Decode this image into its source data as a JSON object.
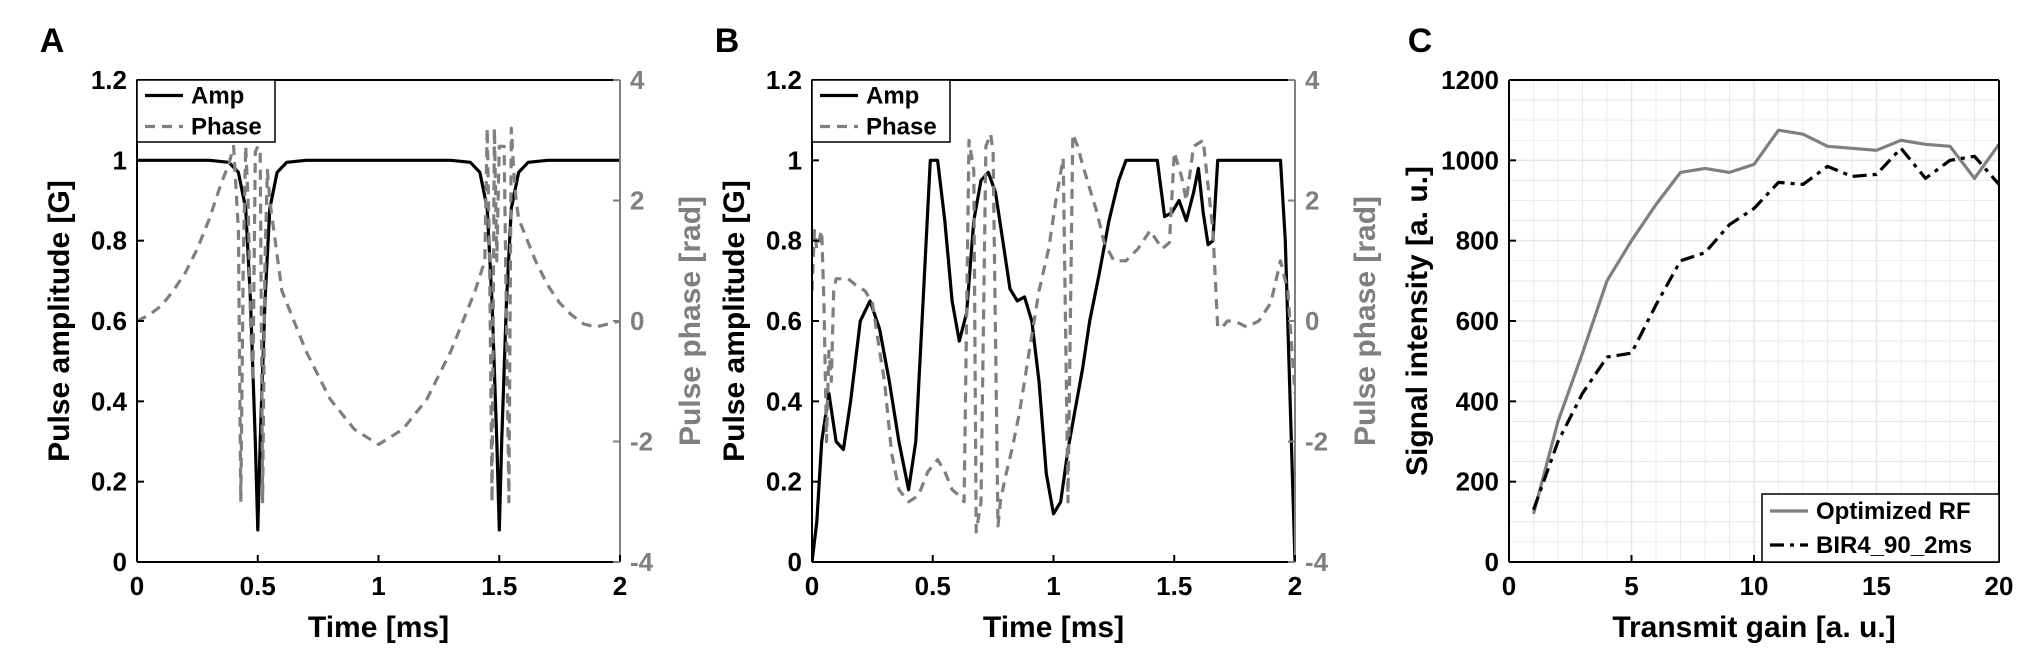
{
  "colors": {
    "black": "#000000",
    "gray": "#7f7f7f",
    "grid": "#e6e6e6"
  },
  "chart_data": [
    {
      "panel": "A",
      "type": "line",
      "xlabel": "Time [ms]",
      "ylabel": "Pulse amplitude [G]",
      "y2label": "Pulse phase [rad]",
      "xlim": [
        0,
        2
      ],
      "ylim": [
        0,
        1.2
      ],
      "y2lim": [
        -4,
        4
      ],
      "xticks": [
        "0",
        "0.5",
        "1",
        "1.5",
        "2"
      ],
      "yticks": [
        "0",
        "0.2",
        "0.4",
        "0.6",
        "0.8",
        "1",
        "1.2"
      ],
      "y2ticks": [
        "-4",
        "-2",
        "0",
        "2",
        "4"
      ],
      "grid": false,
      "legend": "top-left",
      "series": [
        {
          "name": "Amp",
          "axis": "left",
          "style": "solid",
          "x": [
            0,
            0.3,
            0.38,
            0.42,
            0.45,
            0.47,
            0.49,
            0.5,
            0.51,
            0.53,
            0.55,
            0.58,
            0.62,
            0.7,
            1.0,
            1.3,
            1.38,
            1.42,
            1.45,
            1.47,
            1.49,
            1.5,
            1.51,
            1.53,
            1.55,
            1.58,
            1.62,
            1.7,
            2.0
          ],
          "y": [
            1,
            1,
            0.995,
            0.97,
            0.88,
            0.65,
            0.3,
            0.08,
            0.3,
            0.65,
            0.88,
            0.97,
            0.995,
            1,
            1,
            1,
            0.995,
            0.97,
            0.88,
            0.65,
            0.3,
            0.08,
            0.3,
            0.65,
            0.88,
            0.97,
            0.995,
            1,
            1
          ]
        },
        {
          "name": "Phase",
          "axis": "right",
          "style": "dashed",
          "x": [
            0,
            0.05,
            0.1,
            0.15,
            0.2,
            0.25,
            0.3,
            0.35,
            0.38,
            0.4,
            0.42,
            0.43,
            0.44,
            0.45,
            0.46,
            0.47,
            0.48,
            0.49,
            0.5,
            0.51,
            0.52,
            0.53,
            0.54,
            0.55,
            0.6,
            0.7,
            0.8,
            0.9,
            1.0,
            1.1,
            1.2,
            1.3,
            1.4,
            1.44,
            1.45,
            1.46,
            1.47,
            1.48,
            1.49,
            1.5,
            1.52,
            1.54,
            1.55,
            1.56,
            1.57,
            1.58,
            1.6,
            1.65,
            1.7,
            1.75,
            1.8,
            1.85,
            1.9,
            1.95,
            2.0
          ],
          "y": [
            0,
            0.1,
            0.25,
            0.5,
            0.8,
            1.2,
            1.7,
            2.3,
            2.6,
            2.9,
            1.5,
            -3.0,
            1.0,
            2.9,
            2.0,
            0.0,
            -1.0,
            2.8,
            2.9,
            2.8,
            -3.0,
            1.0,
            2.5,
            2.0,
            0.5,
            -0.5,
            -1.3,
            -1.8,
            -2.05,
            -1.8,
            -1.3,
            -0.5,
            0.5,
            1.0,
            3.2,
            1.0,
            -3.0,
            3.2,
            1.0,
            2.9,
            2.9,
            -3.0,
            3.2,
            2.5,
            2.0,
            1.7,
            1.5,
            1.0,
            0.6,
            0.3,
            0.1,
            -0.05,
            -0.1,
            -0.05,
            0
          ]
        }
      ]
    },
    {
      "panel": "B",
      "type": "line",
      "xlabel": "Time [ms]",
      "ylabel": "Pulse amplitude [G]",
      "y2label": "Pulse phase [rad]",
      "xlim": [
        0,
        2
      ],
      "ylim": [
        0,
        1.2
      ],
      "y2lim": [
        -4,
        4
      ],
      "xticks": [
        "0",
        "0.5",
        "1",
        "1.5",
        "2"
      ],
      "yticks": [
        "0",
        "0.2",
        "0.4",
        "0.6",
        "0.8",
        "1",
        "1.2"
      ],
      "y2ticks": [
        "-4",
        "-2",
        "0",
        "2",
        "4"
      ],
      "grid": false,
      "legend": "top-left",
      "series": [
        {
          "name": "Amp",
          "axis": "left",
          "style": "solid",
          "x": [
            0,
            0.02,
            0.04,
            0.07,
            0.1,
            0.13,
            0.16,
            0.2,
            0.24,
            0.28,
            0.32,
            0.36,
            0.4,
            0.43,
            0.46,
            0.49,
            0.52,
            0.55,
            0.58,
            0.61,
            0.64,
            0.67,
            0.7,
            0.73,
            0.76,
            0.79,
            0.82,
            0.85,
            0.88,
            0.91,
            0.94,
            0.97,
            1.0,
            1.03,
            1.06,
            1.09,
            1.12,
            1.15,
            1.19,
            1.23,
            1.27,
            1.3,
            1.35,
            1.4,
            1.43,
            1.46,
            1.49,
            1.52,
            1.55,
            1.58,
            1.6,
            1.62,
            1.64,
            1.66,
            1.68,
            1.7,
            1.75,
            1.8,
            1.85,
            1.9,
            1.94,
            1.96,
            2.0
          ],
          "y": [
            0,
            0.1,
            0.3,
            0.42,
            0.3,
            0.28,
            0.4,
            0.6,
            0.65,
            0.58,
            0.45,
            0.3,
            0.18,
            0.3,
            0.65,
            1.0,
            1.0,
            0.85,
            0.65,
            0.55,
            0.62,
            0.85,
            0.95,
            0.97,
            0.92,
            0.8,
            0.68,
            0.65,
            0.66,
            0.6,
            0.45,
            0.22,
            0.12,
            0.15,
            0.28,
            0.38,
            0.48,
            0.6,
            0.72,
            0.85,
            0.95,
            1.0,
            1.0,
            1.0,
            1.0,
            0.86,
            0.87,
            0.9,
            0.85,
            0.92,
            0.98,
            0.87,
            0.79,
            0.8,
            1.0,
            1.0,
            1.0,
            1.0,
            1.0,
            1.0,
            1.0,
            0.8,
            0
          ]
        },
        {
          "name": "Phase",
          "axis": "right",
          "style": "dashed",
          "x": [
            0,
            0.01,
            0.02,
            0.04,
            0.05,
            0.06,
            0.07,
            0.08,
            0.09,
            0.1,
            0.12,
            0.15,
            0.18,
            0.22,
            0.25,
            0.28,
            0.3,
            0.33,
            0.36,
            0.4,
            0.44,
            0.48,
            0.52,
            0.55,
            0.58,
            0.61,
            0.63,
            0.65,
            0.67,
            0.68,
            0.7,
            0.72,
            0.74,
            0.75,
            0.77,
            0.78,
            0.8,
            0.83,
            0.86,
            0.9,
            0.94,
            0.98,
            1.01,
            1.04,
            1.06,
            1.08,
            1.1,
            1.12,
            1.15,
            1.18,
            1.21,
            1.25,
            1.3,
            1.35,
            1.4,
            1.45,
            1.48,
            1.5,
            1.53,
            1.55,
            1.58,
            1.62,
            1.66,
            1.68,
            1.7,
            1.72,
            1.75,
            1.8,
            1.85,
            1.9,
            1.94,
            1.97,
            2.0
          ],
          "y": [
            0.5,
            1.5,
            1.2,
            1.5,
            0.2,
            -2.0,
            -0.5,
            -1.0,
            0.5,
            0.7,
            0.7,
            0.7,
            0.6,
            0.5,
            0.3,
            -0.5,
            -1.0,
            -2.2,
            -2.8,
            -3.0,
            -2.9,
            -2.5,
            -2.3,
            -2.5,
            -2.8,
            -2.9,
            -3.0,
            3.0,
            2.5,
            -3.5,
            -3.0,
            2.9,
            3.1,
            2.8,
            -3.4,
            -3.0,
            -2.6,
            -2.1,
            -1.5,
            -0.5,
            0.5,
            1.2,
            2.0,
            2.7,
            -3.0,
            3.1,
            2.9,
            2.6,
            2.2,
            1.8,
            1.3,
            1.0,
            1.0,
            1.2,
            1.5,
            1.2,
            1.3,
            2.8,
            2.4,
            2.0,
            2.9,
            3.0,
            1.5,
            -0.1,
            -0.1,
            0.0,
            0.0,
            -0.1,
            0.0,
            0.3,
            1.0,
            0.5,
            -1.2
          ]
        }
      ]
    },
    {
      "panel": "C",
      "type": "line",
      "xlabel": "Transmit gain [a. u.]",
      "ylabel": "Signal intensity [a. u.]",
      "xlim": [
        0,
        20
      ],
      "ylim": [
        0,
        1200
      ],
      "xticks": [
        "0",
        "5",
        "10",
        "15",
        "20"
      ],
      "yticks": [
        "0",
        "200",
        "400",
        "600",
        "800",
        "1000",
        "1200"
      ],
      "grid": true,
      "legend": "bottom-right",
      "series": [
        {
          "name": "Optimized RF",
          "style": "solid",
          "x": [
            1,
            2,
            3,
            4,
            5,
            6,
            7,
            8,
            9,
            10,
            11,
            12,
            13,
            14,
            15,
            16,
            17,
            18,
            19,
            20
          ],
          "y": [
            120,
            350,
            520,
            700,
            800,
            890,
            970,
            980,
            970,
            990,
            1075,
            1065,
            1035,
            1030,
            1025,
            1050,
            1040,
            1035,
            955,
            1040
          ]
        },
        {
          "name": "BIR4_90_2ms",
          "style": "dashdot",
          "x": [
            1,
            2,
            3,
            4,
            5,
            6,
            7,
            8,
            9,
            10,
            11,
            12,
            13,
            14,
            15,
            16,
            17,
            18,
            19,
            20
          ],
          "y": [
            130,
            300,
            420,
            510,
            520,
            640,
            750,
            770,
            840,
            880,
            945,
            940,
            985,
            960,
            965,
            1030,
            955,
            1000,
            1010,
            940
          ]
        }
      ]
    }
  ]
}
